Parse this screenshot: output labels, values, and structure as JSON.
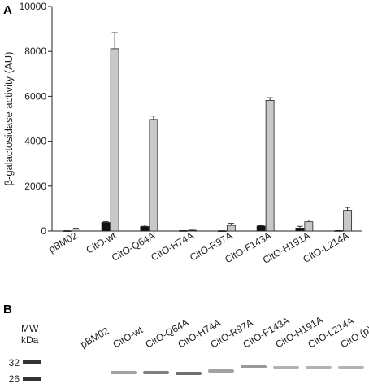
{
  "panel_a": {
    "letter": "A"
  },
  "panel_b": {
    "letter": "B",
    "mw_label": "MW",
    "kda_label": "kDa",
    "markers": [
      "32",
      "26"
    ],
    "lanes": [
      "pBM02",
      "CitO-wt",
      "CitO-Q64A",
      "CitO-H74A",
      "CitO-R97A",
      "CitO-F143A",
      "CitO-H191A",
      "CitO-L214A",
      "CitO (p)"
    ],
    "band_intensity": [
      0.0,
      0.55,
      0.75,
      0.85,
      0.55,
      0.6,
      0.45,
      0.45,
      0.45
    ]
  },
  "chart_data": {
    "type": "bar",
    "title": "",
    "xlabel": "",
    "ylabel": "β-galactosidase activity (AU)",
    "ylim": [
      0,
      10000
    ],
    "yticks": [
      0,
      2000,
      4000,
      6000,
      8000,
      10000
    ],
    "categories": [
      "pBM02",
      "CitO-wt",
      "CitO-Q64A",
      "CitO-H74A",
      "CitO-R97A",
      "CitO-F143A",
      "CitO-H191A",
      "CitO-L214A"
    ],
    "series": [
      {
        "values": [
          10,
          380,
          200,
          15,
          10,
          220,
          130,
          15
        ],
        "errors": [
          5,
          40,
          60,
          5,
          5,
          25,
          80,
          5
        ],
        "color": "#111111"
      },
      {
        "values": [
          90,
          8120,
          4970,
          30,
          250,
          5820,
          410,
          920
        ],
        "errors": [
          30,
          720,
          150,
          10,
          90,
          120,
          80,
          130
        ],
        "color": "#c8c8c8"
      }
    ],
    "grid": false,
    "legend": "none"
  }
}
